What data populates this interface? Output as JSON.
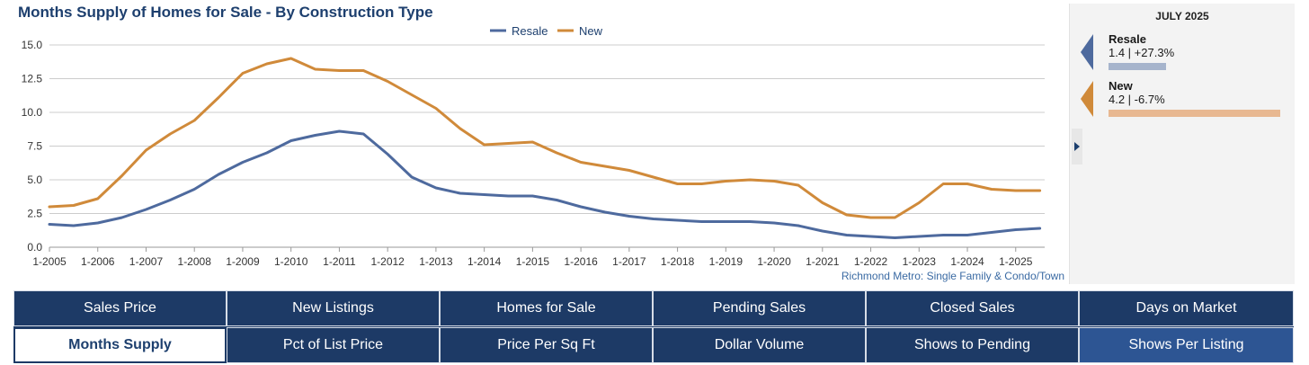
{
  "title": "Months Supply of Homes for Sale - By Construction Type",
  "chart_data": {
    "type": "line",
    "title": "Months Supply of Homes for Sale - By Construction Type",
    "xlabel": "",
    "ylabel": "",
    "ylim": [
      0,
      15
    ],
    "grid": true,
    "legend_position": "top-center",
    "yticks": [
      "0.0",
      "2.5",
      "5.0",
      "7.5",
      "10.0",
      "12.5",
      "15.0"
    ],
    "xticks": [
      "1-2005",
      "1-2006",
      "1-2007",
      "1-2008",
      "1-2009",
      "1-2010",
      "1-2011",
      "1-2012",
      "1-2013",
      "1-2014",
      "1-2015",
      "1-2016",
      "1-2017",
      "1-2018",
      "1-2019",
      "1-2020",
      "1-2021",
      "1-2022",
      "1-2023",
      "1-2024",
      "1-2025"
    ],
    "x": [
      2005.0,
      2005.5,
      2006.0,
      2006.5,
      2007.0,
      2007.5,
      2008.0,
      2008.5,
      2009.0,
      2009.5,
      2010.0,
      2010.5,
      2011.0,
      2011.5,
      2012.0,
      2012.5,
      2013.0,
      2013.5,
      2014.0,
      2014.5,
      2015.0,
      2015.5,
      2016.0,
      2016.5,
      2017.0,
      2017.5,
      2018.0,
      2018.5,
      2019.0,
      2019.5,
      2020.0,
      2020.5,
      2021.0,
      2021.5,
      2022.0,
      2022.5,
      2023.0,
      2023.5,
      2024.0,
      2024.5,
      2025.0,
      2025.5
    ],
    "series": [
      {
        "name": "Resale",
        "color": "#4e6a9e",
        "values": [
          1.7,
          1.6,
          1.8,
          2.2,
          2.8,
          3.5,
          4.3,
          5.4,
          6.3,
          7.0,
          7.9,
          8.3,
          8.6,
          8.4,
          6.9,
          5.2,
          4.4,
          4.0,
          3.9,
          3.8,
          3.8,
          3.5,
          3.0,
          2.6,
          2.3,
          2.1,
          2.0,
          1.9,
          1.9,
          1.9,
          1.8,
          1.6,
          1.2,
          0.9,
          0.8,
          0.7,
          0.8,
          0.9,
          0.9,
          1.1,
          1.3,
          1.4
        ]
      },
      {
        "name": "New",
        "color": "#d08a3a",
        "values": [
          3.0,
          3.1,
          3.6,
          5.3,
          7.2,
          8.4,
          9.4,
          11.1,
          12.9,
          13.6,
          14.0,
          13.2,
          13.1,
          13.1,
          12.3,
          11.3,
          10.3,
          8.8,
          7.6,
          7.7,
          7.8,
          7.0,
          6.3,
          6.0,
          5.7,
          5.2,
          4.7,
          4.7,
          4.9,
          5.0,
          4.9,
          4.6,
          3.3,
          2.4,
          2.2,
          2.2,
          3.3,
          4.7,
          4.7,
          4.3,
          4.2,
          4.2
        ]
      }
    ],
    "annotation": "Richmond Metro: Single Family & Condo/Town"
  },
  "side_panel": {
    "title": "JULY 2025",
    "entries": [
      {
        "name": "Resale",
        "value": "1.4 | +27.3%",
        "value_num": 1.4,
        "color": "#4e6a9e",
        "bar_color": "#a6b4cc"
      },
      {
        "name": "New",
        "value": "4.2 | -6.7%",
        "value_num": 4.2,
        "color": "#d08a3a",
        "bar_color": "#e8b891"
      }
    ]
  },
  "nav": {
    "rows": [
      [
        "Sales Price",
        "New Listings",
        "Homes for Sale",
        "Pending Sales",
        "Closed Sales",
        "Days on Market"
      ],
      [
        "Months Supply",
        "Pct of List Price",
        "Price Per Sq Ft",
        "Dollar Volume",
        "Shows to Pending",
        "Shows Per Listing"
      ]
    ],
    "active": "Months Supply",
    "hover": "Shows Per Listing"
  }
}
